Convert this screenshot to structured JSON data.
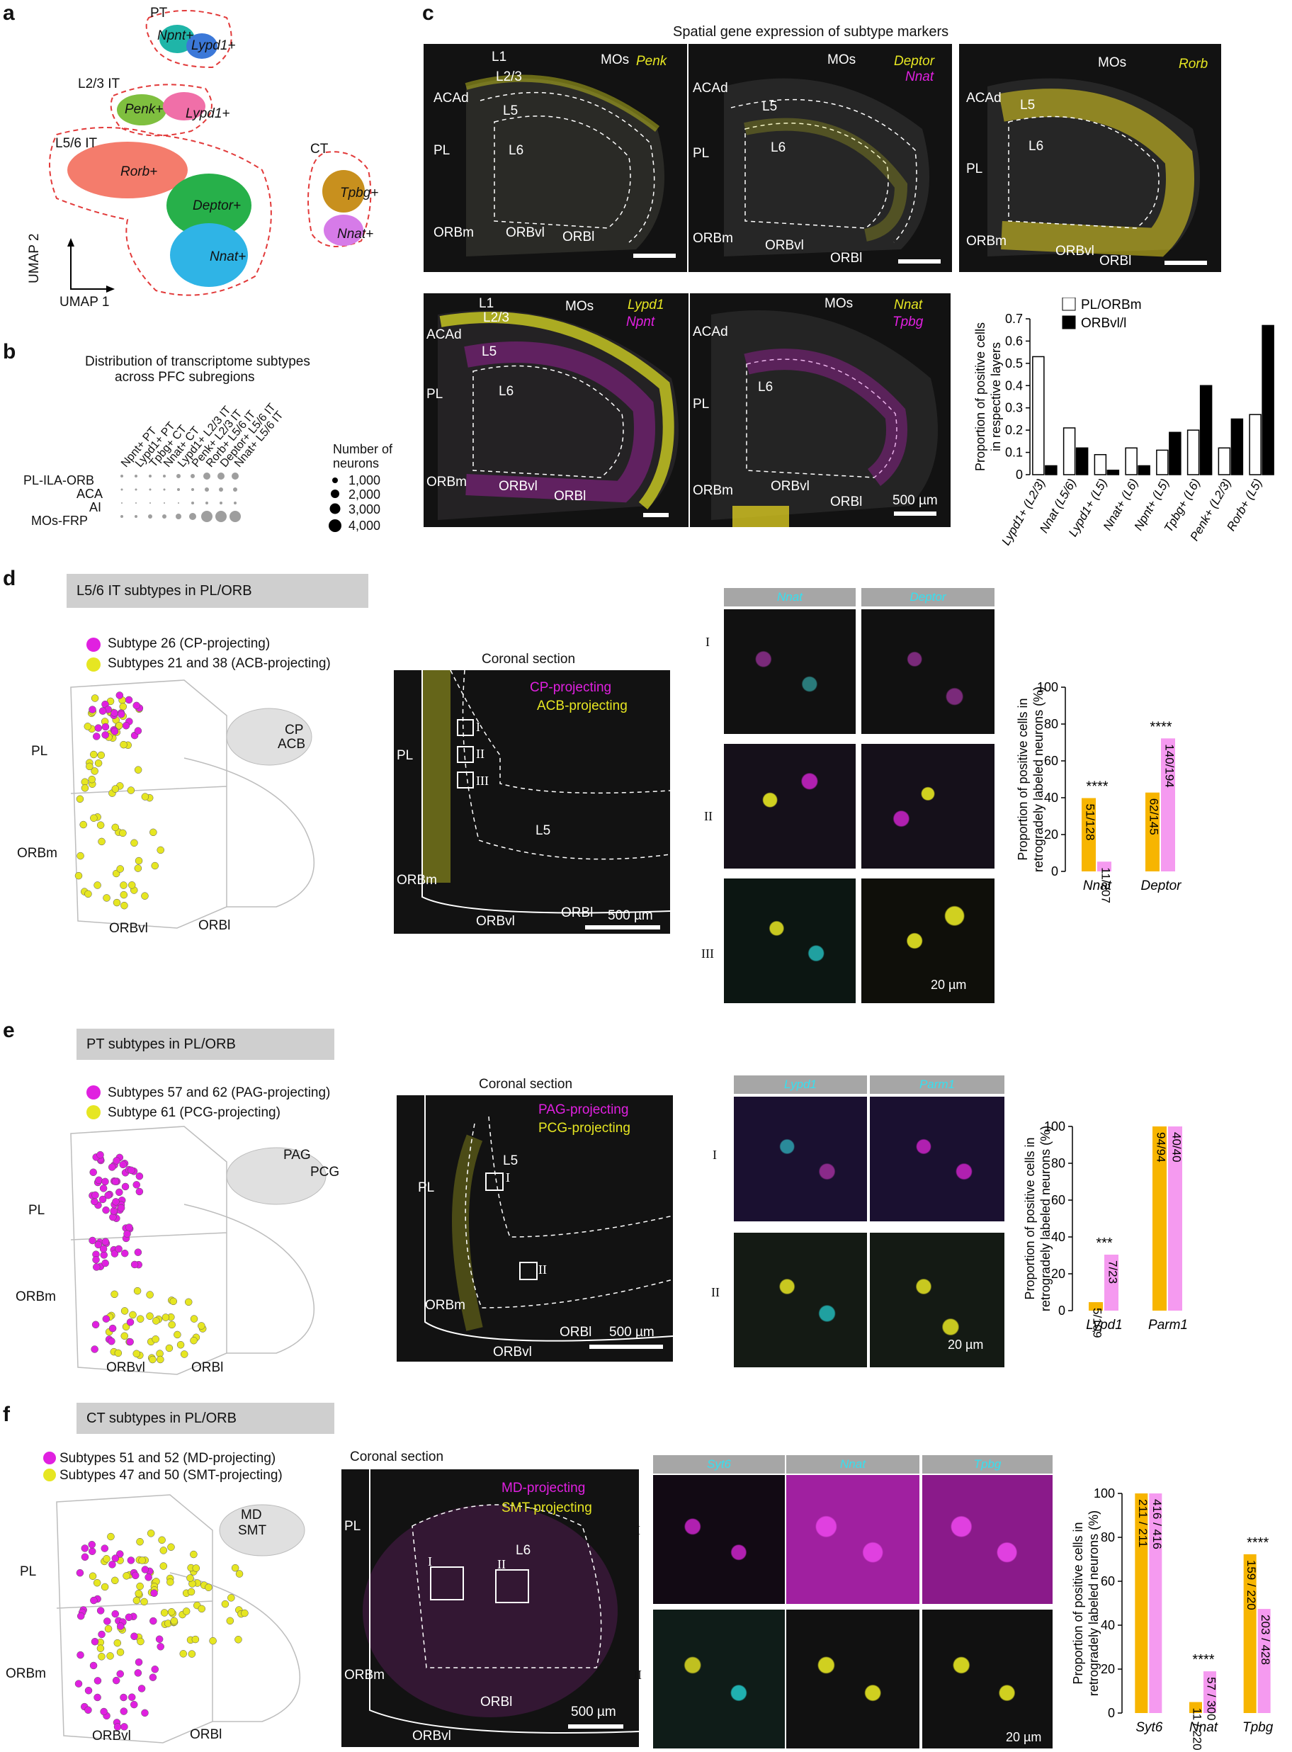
{
  "panel_letters": {
    "a": "a",
    "b": "b",
    "c": "c",
    "d": "d",
    "e": "e",
    "f": "f"
  },
  "a": {
    "clusters": [
      "PT",
      "L2/3 IT",
      "L5/6 IT",
      "CT"
    ],
    "markers": [
      "Npnt+",
      "Lypd1+",
      "Penk+",
      "Lypd1+",
      "Rorb+",
      "Deptor+",
      "Nnat+",
      "Tpbg+",
      "Nnat+"
    ],
    "axis_y": "UMAP 2",
    "axis_x": "UMAP 1",
    "colors": {
      "pt1": "#1fb5a8",
      "pt2": "#3b78d8",
      "penk": "#7fbf3f",
      "lypd1": "#f06fa8",
      "rorb": "#f47c6c",
      "deptor": "#27b04a",
      "nnat": "#2fb4e6",
      "tpbg": "#c8901e",
      "nnatct": "#d67be8",
      "outline": "#e23a3a"
    }
  },
  "b": {
    "title1": "Distribution of transcriptome subtypes",
    "title2": "across PFC subregions",
    "cols": [
      "Npnt+ PT",
      "Lypd1+ PT",
      "Tpbg+ CT",
      "Nnat+ CT",
      "Lypd1+ L2/3 IT",
      "Penk+ L2/3 IT",
      "Rorb+ L5/6 IT",
      "Deptor+ L5/6 IT",
      "Nnat+ L5/6 IT"
    ],
    "rows": [
      "PL-ILA-ORB",
      "ACA",
      "AI",
      "MOs-FRP"
    ],
    "legend_title": "Number of neurons",
    "legend": [
      "1,000",
      "2,000",
      "3,000",
      "4,000"
    ]
  },
  "c": {
    "title": "Spatial gene expression of subtype markers",
    "m1": {
      "labels": [
        "L1",
        "MOs",
        "L2/3",
        "ACAd",
        "L5",
        "PL",
        "L6",
        "ORBm",
        "ORBvl",
        "ORBl"
      ],
      "genes": [
        "Penk"
      ]
    },
    "m2": {
      "labels": [
        "MOs",
        "ACAd",
        "L5",
        "PL",
        "L6",
        "ORBm",
        "ORBvl",
        "ORBl"
      ],
      "genes": [
        "Deptor",
        "Nnat"
      ]
    },
    "m3": {
      "labels": [
        "MOs",
        "ACAd",
        "L5",
        "PL",
        "L6",
        "ORBm",
        "ORBvl",
        "ORBl"
      ],
      "genes": [
        "Rorb"
      ]
    },
    "m4": {
      "labels": [
        "L1",
        "MOs",
        "L2/3",
        "ACAd",
        "L5",
        "PL",
        "L6",
        "ORBm",
        "ORBvl",
        "ORBl"
      ],
      "genes": [
        "Lypd1",
        "Npnt"
      ]
    },
    "m5": {
      "labels": [
        "MOs",
        "ACAd",
        "PL",
        "L6",
        "ORBm",
        "ORBvl",
        "ORBl"
      ],
      "genes": [
        "Nnat",
        "Tpbg"
      ],
      "scale": "500 µm"
    }
  },
  "d": {
    "header": "L5/6 IT subtypes in PL/ORB",
    "legend": [
      "Subtype 26 (CP-projecting)",
      "Subtypes 21 and 38 (ACB-projecting)"
    ],
    "regions": [
      "PL",
      "ORBm",
      "ORBvl",
      "ORBl"
    ],
    "brain": [
      "CP",
      "ACB"
    ],
    "section": {
      "title": "Coronal section",
      "leg": [
        "CP-projecting",
        "ACB-projecting"
      ],
      "labels": [
        "PL",
        "ORBm",
        "ORBvl",
        "ORBl",
        "L5"
      ],
      "scale": "500 µm"
    },
    "roman": [
      "I",
      "II",
      "III"
    ],
    "tiles": [
      "Nnat",
      "Deptor"
    ],
    "tile_scale": "20 µm"
  },
  "e": {
    "header": "PT subtypes in PL/ORB",
    "legend": [
      "Subtypes 57 and 62 (PAG-projecting)",
      "Subtype 61 (PCG-projecting)"
    ],
    "regions": [
      "PL",
      "ORBm",
      "ORBvl",
      "ORBl"
    ],
    "brain": [
      "PAG",
      "PCG"
    ],
    "section": {
      "title": "Coronal section",
      "leg": [
        "PAG-projecting",
        "PCG-projecting"
      ],
      "labels": [
        "L5",
        "PL",
        "ORBm",
        "ORBvl",
        "ORBl"
      ],
      "scale": "500 µm"
    },
    "roman": [
      "I",
      "II"
    ],
    "tiles": [
      "Lypd1",
      "Parm1"
    ],
    "tile_scale": "20 µm"
  },
  "f": {
    "header": "CT subtypes in PL/ORB",
    "legend": [
      "Subtypes 51 and 52 (MD-projecting)",
      "Subtypes 47 and 50 (SMT-projecting)"
    ],
    "regions": [
      "PL",
      "ORBm",
      "ORBvl",
      "ORBl"
    ],
    "brain": [
      "MD",
      "SMT"
    ],
    "section": {
      "title": "Coronal section",
      "leg": [
        "MD-projecting",
        "SMT-projecting"
      ],
      "labels": [
        "PL",
        "L6",
        "ORBm",
        "ORBvl",
        "ORBl"
      ],
      "scale": "500 µm"
    },
    "roman": [
      "I",
      "II"
    ],
    "tiles": [
      "Syt6",
      "Nnat",
      "Tpbg"
    ],
    "tile_scale": "20 µm"
  },
  "chart_data": [
    {
      "type": "bar",
      "panel": "c",
      "categories": [
        "Lypd1+ (L2/3)",
        "Nnat (L5/6)",
        "Lypd1+ (L5)",
        "Nnat+ (L6)",
        "Npnt+ (L5)",
        "Tpbg+ (L6)",
        "Penk+ (L2/3)",
        "Rorb+ (L5)"
      ],
      "series": [
        {
          "name": "PL/ORBm",
          "values": [
            0.53,
            0.21,
            0.09,
            0.12,
            0.11,
            0.2,
            0.12,
            0.27
          ]
        },
        {
          "name": "ORBvl/l",
          "values": [
            0.04,
            0.12,
            0.02,
            0.04,
            0.19,
            0.4,
            0.25,
            0.67
          ]
        }
      ],
      "ylabel": "Proportion of positive cells in respective layers",
      "ylim": [
        0,
        0.7
      ],
      "yticks": [
        "0",
        "0.1",
        "0.2",
        "0.3",
        "0.4",
        "0.5",
        "0.6",
        "0.7"
      ]
    },
    {
      "type": "bar",
      "panel": "d",
      "categories": [
        "Nnat",
        "Deptor"
      ],
      "series": [
        {
          "values": [
            39.8,
            42.8
          ]
        },
        {
          "values": [
            5.3,
            72.2
          ]
        }
      ],
      "labels": [
        [
          "51/128",
          "62/145"
        ],
        [
          "11/207",
          "140/194"
        ]
      ],
      "sig": [
        "****",
        "****"
      ],
      "ylabel": "Proportion of positive cells in retrogradely labeled neurons (%)",
      "ylim": [
        0,
        100
      ],
      "yticks": [
        "0",
        "20",
        "40",
        "60",
        "80",
        "100"
      ]
    },
    {
      "type": "bar",
      "panel": "e",
      "categories": [
        "Lypd1",
        "Parm1"
      ],
      "series": [
        {
          "values": [
            4.6,
            100
          ]
        },
        {
          "values": [
            30.4,
            100
          ]
        }
      ],
      "labels": [
        [
          "5/109",
          "94/94"
        ],
        [
          "7/23",
          "40/40"
        ]
      ],
      "sig": [
        "***",
        ""
      ],
      "ylabel": "Proportion of positive cells in retrogradely labeled neurons (%)",
      "ylim": [
        0,
        100
      ],
      "yticks": [
        "0",
        "20",
        "40",
        "60",
        "80",
        "100"
      ]
    },
    {
      "type": "bar",
      "panel": "f",
      "categories": [
        "Syt6",
        "Nnat",
        "Tpbg"
      ],
      "series": [
        {
          "values": [
            100,
            5,
            72.3
          ]
        },
        {
          "values": [
            100,
            19,
            47.4
          ]
        }
      ],
      "labels": [
        [
          "211 / 211",
          "11 / 220",
          "159 / 220"
        ],
        [
          "416 / 416",
          "57 / 300",
          "203 / 428"
        ]
      ],
      "sig": [
        "",
        "****",
        "****"
      ],
      "ylabel": "Proportion of positive cells in retrogradely labeled neurons (%)",
      "ylim": [
        0,
        100
      ],
      "yticks": [
        "0",
        "20",
        "40",
        "60",
        "80",
        "100"
      ]
    }
  ],
  "colors": {
    "orange": "#f7b500",
    "pink": "#f59af0",
    "magenta": "#e020e0",
    "yellow": "#e6e622",
    "cyan": "#22d8e8"
  }
}
